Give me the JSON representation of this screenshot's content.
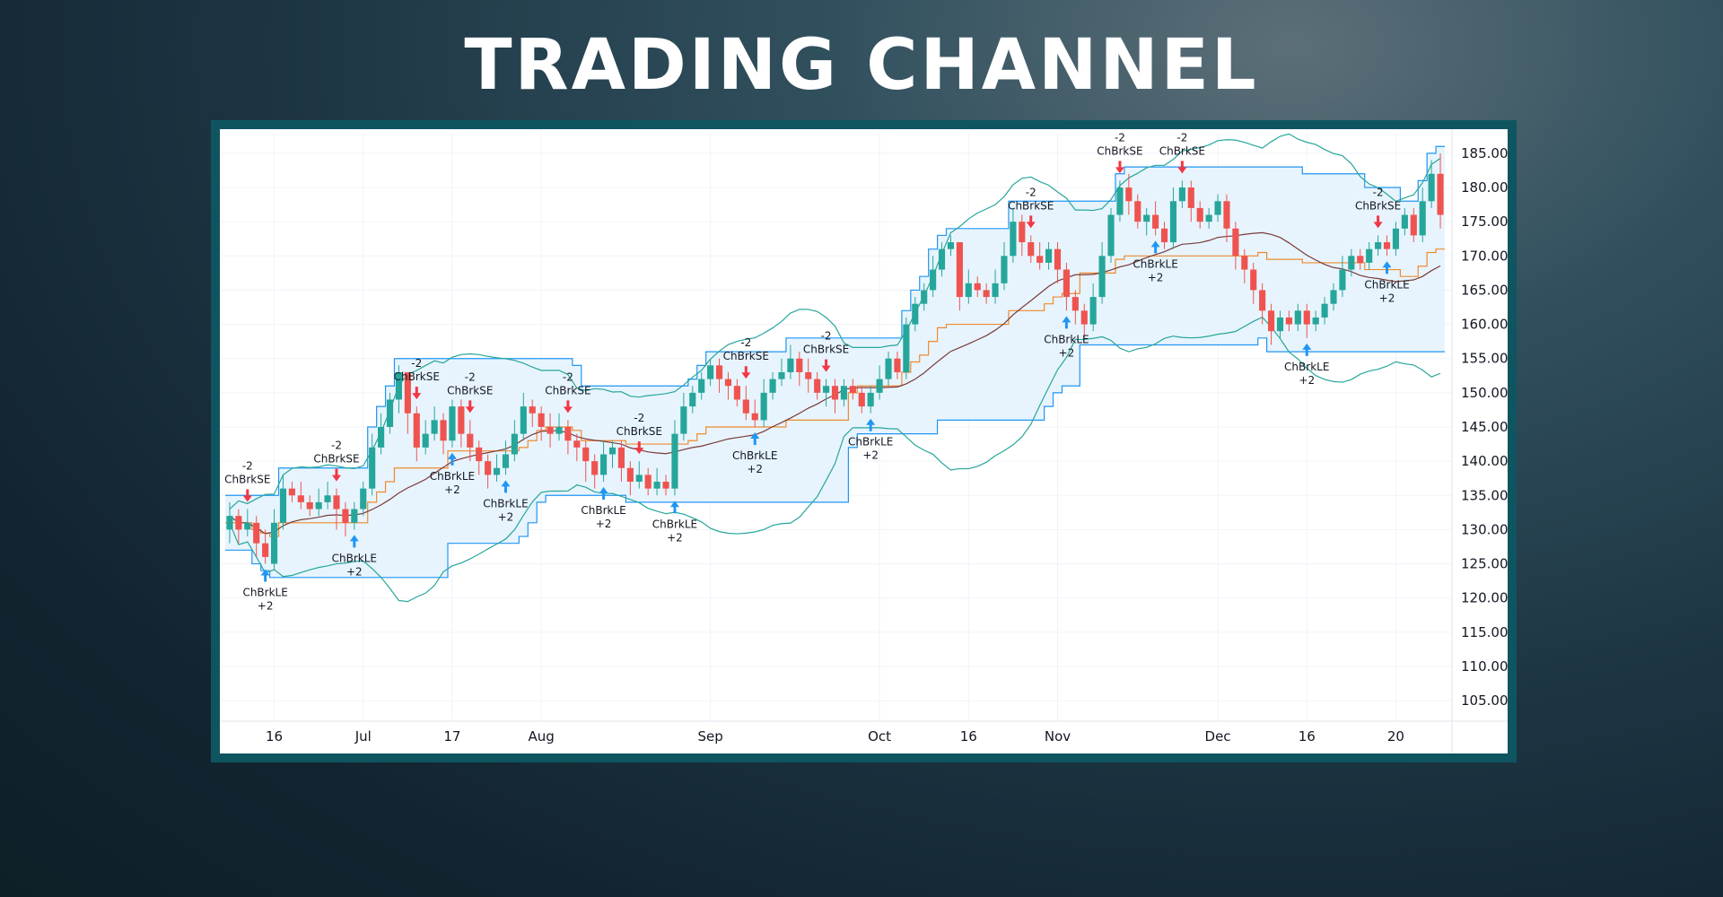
{
  "page": {
    "title": "TRADING CHANNEL"
  },
  "colors": {
    "up": "#26a69a",
    "down": "#ef5350",
    "channel_line": "#2196f3",
    "channel_fill": "#e3f2fd",
    "bollinger": "#26a69a",
    "midline": "#ef8a2f",
    "ma": "#7b3a3a",
    "long_arrow": "#2196f3",
    "short_arrow": "#f23645",
    "frame": "#0e5560"
  },
  "chart_data": {
    "type": "candlestick",
    "title": "",
    "ylim": [
      102,
      188
    ],
    "y_ticks": [
      "105.00",
      "110.00",
      "115.00",
      "120.00",
      "125.00",
      "130.00",
      "135.00",
      "140.00",
      "145.00",
      "150.00",
      "155.00",
      "160.00",
      "165.00",
      "170.00",
      "175.00",
      "180.00",
      "185.00"
    ],
    "x_ticks": [
      {
        "i": 5,
        "label": "16"
      },
      {
        "i": 15,
        "label": "Jul"
      },
      {
        "i": 25,
        "label": "17"
      },
      {
        "i": 35,
        "label": "Aug"
      },
      {
        "i": 54,
        "label": "Sep"
      },
      {
        "i": 73,
        "label": "Oct"
      },
      {
        "i": 83,
        "label": "16"
      },
      {
        "i": 93,
        "label": "Nov"
      },
      {
        "i": 111,
        "label": "Dec"
      },
      {
        "i": 121,
        "label": "16"
      },
      {
        "i": 131,
        "label": "20"
      }
    ],
    "candles": [
      [
        130,
        132,
        134,
        128
      ],
      [
        132,
        130,
        133,
        128
      ],
      [
        130,
        131,
        133,
        129
      ],
      [
        131,
        128,
        132,
        126
      ],
      [
        128,
        126,
        130,
        125
      ],
      [
        125,
        131,
        133,
        124
      ],
      [
        131,
        136,
        138,
        130
      ],
      [
        136,
        135,
        137,
        134
      ],
      [
        135,
        134,
        137,
        133
      ],
      [
        134,
        133,
        135,
        132
      ],
      [
        133,
        134,
        136,
        132
      ],
      [
        134,
        135,
        137,
        133
      ],
      [
        135,
        133,
        136,
        130
      ],
      [
        133,
        131,
        134,
        129
      ],
      [
        131,
        133,
        134,
        130
      ],
      [
        133,
        136,
        137,
        132
      ],
      [
        136,
        142,
        144,
        135
      ],
      [
        142,
        145,
        147,
        141
      ],
      [
        145,
        149,
        150,
        144
      ],
      [
        149,
        153,
        154,
        147
      ],
      [
        153,
        147,
        153,
        144
      ],
      [
        147,
        142,
        148,
        140
      ],
      [
        142,
        144,
        146,
        141
      ],
      [
        144,
        146,
        148,
        143
      ],
      [
        146,
        143,
        147,
        141
      ],
      [
        143,
        148,
        149,
        142
      ],
      [
        148,
        144,
        149,
        142
      ],
      [
        144,
        142,
        146,
        140
      ],
      [
        142,
        140,
        143,
        138
      ],
      [
        140,
        138,
        141,
        136
      ],
      [
        138,
        139,
        141,
        137
      ],
      [
        139,
        141,
        143,
        138
      ],
      [
        141,
        144,
        146,
        140
      ],
      [
        144,
        148,
        150,
        143
      ],
      [
        148,
        147,
        149,
        145
      ],
      [
        147,
        145,
        148,
        143
      ],
      [
        145,
        144,
        147,
        142
      ],
      [
        144,
        145,
        147,
        143
      ],
      [
        145,
        143,
        146,
        141
      ],
      [
        143,
        142,
        144,
        140
      ],
      [
        142,
        140,
        143,
        137
      ],
      [
        140,
        138,
        141,
        136
      ],
      [
        138,
        141,
        143,
        137
      ],
      [
        141,
        142,
        143,
        139
      ],
      [
        142,
        139,
        143,
        137
      ],
      [
        139,
        137,
        140,
        135
      ],
      [
        137,
        138,
        140,
        136
      ],
      [
        138,
        136,
        139,
        135
      ],
      [
        136,
        137,
        139,
        135
      ],
      [
        137,
        136,
        138,
        135
      ],
      [
        136,
        144,
        146,
        135
      ],
      [
        144,
        148,
        150,
        143
      ],
      [
        148,
        150,
        151,
        147
      ],
      [
        150,
        152,
        153,
        149
      ],
      [
        152,
        154,
        155,
        151
      ],
      [
        154,
        152,
        155,
        150
      ],
      [
        152,
        151,
        153,
        149
      ],
      [
        151,
        149,
        152,
        148
      ],
      [
        149,
        147,
        151,
        146
      ],
      [
        147,
        146,
        149,
        145
      ],
      [
        146,
        150,
        152,
        145
      ],
      [
        150,
        152,
        153,
        149
      ],
      [
        152,
        153,
        155,
        151
      ],
      [
        153,
        155,
        157,
        152
      ],
      [
        155,
        153,
        156,
        151
      ],
      [
        153,
        152,
        155,
        150
      ],
      [
        152,
        150,
        153,
        149
      ],
      [
        150,
        151,
        152,
        148
      ],
      [
        151,
        149,
        152,
        147
      ],
      [
        149,
        151,
        152,
        148
      ],
      [
        151,
        150,
        152,
        149
      ],
      [
        150,
        148,
        151,
        147
      ],
      [
        148,
        150,
        151,
        147
      ],
      [
        150,
        152,
        154,
        149
      ],
      [
        152,
        155,
        156,
        151
      ],
      [
        155,
        153,
        156,
        152
      ],
      [
        153,
        160,
        161,
        152
      ],
      [
        160,
        163,
        164,
        159
      ],
      [
        163,
        165,
        166,
        162
      ],
      [
        165,
        168,
        170,
        164
      ],
      [
        168,
        171,
        172,
        167
      ],
      [
        171,
        172,
        173,
        170
      ],
      [
        172,
        164,
        172,
        162
      ],
      [
        164,
        166,
        168,
        163
      ],
      [
        166,
        165,
        167,
        164
      ],
      [
        165,
        164,
        166,
        163
      ],
      [
        164,
        166,
        168,
        163
      ],
      [
        166,
        170,
        172,
        165
      ],
      [
        170,
        175,
        177,
        169
      ],
      [
        175,
        172,
        176,
        170
      ],
      [
        172,
        170,
        173,
        169
      ],
      [
        170,
        169,
        172,
        168
      ],
      [
        169,
        171,
        172,
        168
      ],
      [
        171,
        168,
        172,
        166
      ],
      [
        168,
        164,
        169,
        162
      ],
      [
        164,
        162,
        165,
        160
      ],
      [
        162,
        160,
        163,
        158
      ],
      [
        160,
        164,
        166,
        159
      ],
      [
        164,
        170,
        172,
        163
      ],
      [
        170,
        176,
        177,
        169
      ],
      [
        176,
        180,
        181,
        175
      ],
      [
        180,
        178,
        182,
        176
      ],
      [
        178,
        175,
        179,
        174
      ],
      [
        175,
        176,
        177,
        173
      ],
      [
        176,
        174,
        178,
        173
      ],
      [
        174,
        172,
        175,
        171
      ],
      [
        172,
        178,
        180,
        171
      ],
      [
        178,
        180,
        181,
        177
      ],
      [
        180,
        177,
        181,
        175
      ],
      [
        177,
        175,
        178,
        174
      ],
      [
        175,
        176,
        177,
        174
      ],
      [
        176,
        178,
        179,
        175
      ],
      [
        178,
        174,
        179,
        172
      ],
      [
        174,
        170,
        175,
        168
      ],
      [
        170,
        168,
        171,
        166
      ],
      [
        168,
        165,
        169,
        163
      ],
      [
        165,
        162,
        166,
        160
      ],
      [
        162,
        159,
        163,
        157
      ],
      [
        159,
        161,
        162,
        158
      ],
      [
        161,
        160,
        162,
        159
      ],
      [
        160,
        162,
        163,
        159
      ],
      [
        162,
        160,
        163,
        158
      ],
      [
        160,
        161,
        162,
        159
      ],
      [
        161,
        163,
        164,
        160
      ],
      [
        163,
        165,
        166,
        162
      ],
      [
        165,
        168,
        170,
        164
      ],
      [
        168,
        170,
        171,
        167
      ],
      [
        170,
        169,
        171,
        168
      ],
      [
        169,
        171,
        172,
        168
      ],
      [
        171,
        172,
        173,
        170
      ],
      [
        172,
        171,
        173,
        170
      ],
      [
        171,
        174,
        175,
        170
      ],
      [
        174,
        176,
        177,
        173
      ],
      [
        176,
        173,
        177,
        172
      ],
      [
        173,
        178,
        180,
        172
      ],
      [
        178,
        182,
        184,
        177
      ],
      [
        182,
        176,
        185,
        174
      ]
    ],
    "signals": [
      {
        "i": 2,
        "type": "short",
        "label": "ChBrkSE",
        "qty": "-2"
      },
      {
        "i": 4,
        "type": "long",
        "label": "ChBrkLE",
        "qty": "+2"
      },
      {
        "i": 12,
        "type": "short",
        "label": "ChBrkSE",
        "qty": "-2"
      },
      {
        "i": 14,
        "type": "long",
        "label": "ChBrkLE",
        "qty": "+2"
      },
      {
        "i": 21,
        "type": "short",
        "label": "ChBrkSE",
        "qty": "-2"
      },
      {
        "i": 27,
        "type": "short",
        "label": "ChBrkSE",
        "qty": "-2"
      },
      {
        "i": 25,
        "type": "long",
        "label": "ChBrkLE",
        "qty": "+2"
      },
      {
        "i": 31,
        "type": "long",
        "label": "ChBrkLE",
        "qty": "+2"
      },
      {
        "i": 38,
        "type": "short",
        "label": "ChBrkSE",
        "qty": "-2"
      },
      {
        "i": 42,
        "type": "long",
        "label": "ChBrkLE",
        "qty": "+2"
      },
      {
        "i": 46,
        "type": "short",
        "label": "ChBrkSE",
        "qty": "-2"
      },
      {
        "i": 50,
        "type": "long",
        "label": "ChBrkLE",
        "qty": "+2"
      },
      {
        "i": 58,
        "type": "short",
        "label": "ChBrkSE",
        "qty": "-2"
      },
      {
        "i": 59,
        "type": "long",
        "label": "ChBrkLE",
        "qty": "+2"
      },
      {
        "i": 67,
        "type": "short",
        "label": "ChBrkSE",
        "qty": "-2"
      },
      {
        "i": 72,
        "type": "long",
        "label": "ChBrkLE",
        "qty": "+2"
      },
      {
        "i": 90,
        "type": "short",
        "label": "ChBrkSE",
        "qty": "-2"
      },
      {
        "i": 94,
        "type": "long",
        "label": "ChBrkLE",
        "qty": "+2"
      },
      {
        "i": 100,
        "type": "short",
        "label": "ChBrkSE",
        "qty": "-2"
      },
      {
        "i": 104,
        "type": "long",
        "label": "ChBrkLE",
        "qty": "+2"
      },
      {
        "i": 107,
        "type": "short",
        "label": "ChBrkSE",
        "qty": "-2"
      },
      {
        "i": 121,
        "type": "long",
        "label": "ChBrkLE",
        "qty": "+2"
      },
      {
        "i": 129,
        "type": "short",
        "label": "ChBrkSE",
        "qty": "-2"
      },
      {
        "i": 130,
        "type": "long",
        "label": "ChBrkLE",
        "qty": "+2"
      }
    ]
  }
}
